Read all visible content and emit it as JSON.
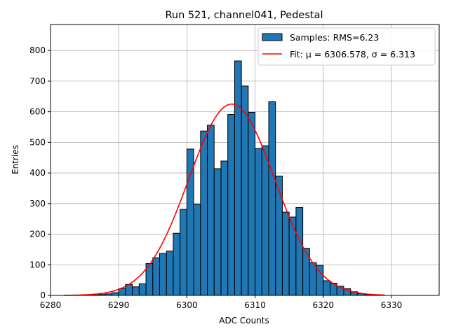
{
  "chart_data": {
    "type": "bar",
    "title": "Run 521, channel041, Pedestal",
    "xlabel": "ADC Counts",
    "ylabel": "Entries",
    "xlim": [
      6280,
      6337
    ],
    "ylim": [
      0,
      885
    ],
    "xticks": [
      6280,
      6290,
      6300,
      6310,
      6320,
      6330
    ],
    "yticks": [
      0,
      100,
      200,
      300,
      400,
      500,
      600,
      700,
      800
    ],
    "grid": true,
    "legend_position": "top-right",
    "bin_width": 1,
    "colors": {
      "bars": "#1f77b4",
      "bar_edge": "#000000",
      "fit": "#ff0000",
      "grid": "#b0b0b0"
    },
    "series": [
      {
        "name": "Samples: RMS=6.23",
        "kind": "histogram",
        "bins": [
          6286,
          6287,
          6288,
          6289,
          6290,
          6291,
          6292,
          6293,
          6294,
          6295,
          6296,
          6297,
          6298,
          6299,
          6300,
          6301,
          6302,
          6303,
          6304,
          6305,
          6306,
          6307,
          6308,
          6309,
          6310,
          6311,
          6312,
          6313,
          6314,
          6315,
          6316,
          6317,
          6318,
          6319,
          6320,
          6321,
          6322,
          6323,
          6324,
          6325,
          6326,
          6327,
          6328
        ],
        "values": [
          1,
          3,
          5,
          9,
          22,
          36,
          28,
          38,
          104,
          123,
          137,
          145,
          203,
          281,
          478,
          298,
          537,
          556,
          414,
          439,
          591,
          766,
          684,
          598,
          480,
          489,
          633,
          390,
          272,
          256,
          287,
          154,
          107,
          98,
          48,
          40,
          30,
          22,
          12,
          6,
          3,
          2,
          1
        ]
      },
      {
        "name": "Fit: μ = 6306.578, σ = 6.313",
        "kind": "gaussian",
        "mu": 6306.578,
        "sigma": 6.313,
        "amplitude": 625,
        "x_range": [
          6282,
          6329
        ]
      }
    ]
  }
}
